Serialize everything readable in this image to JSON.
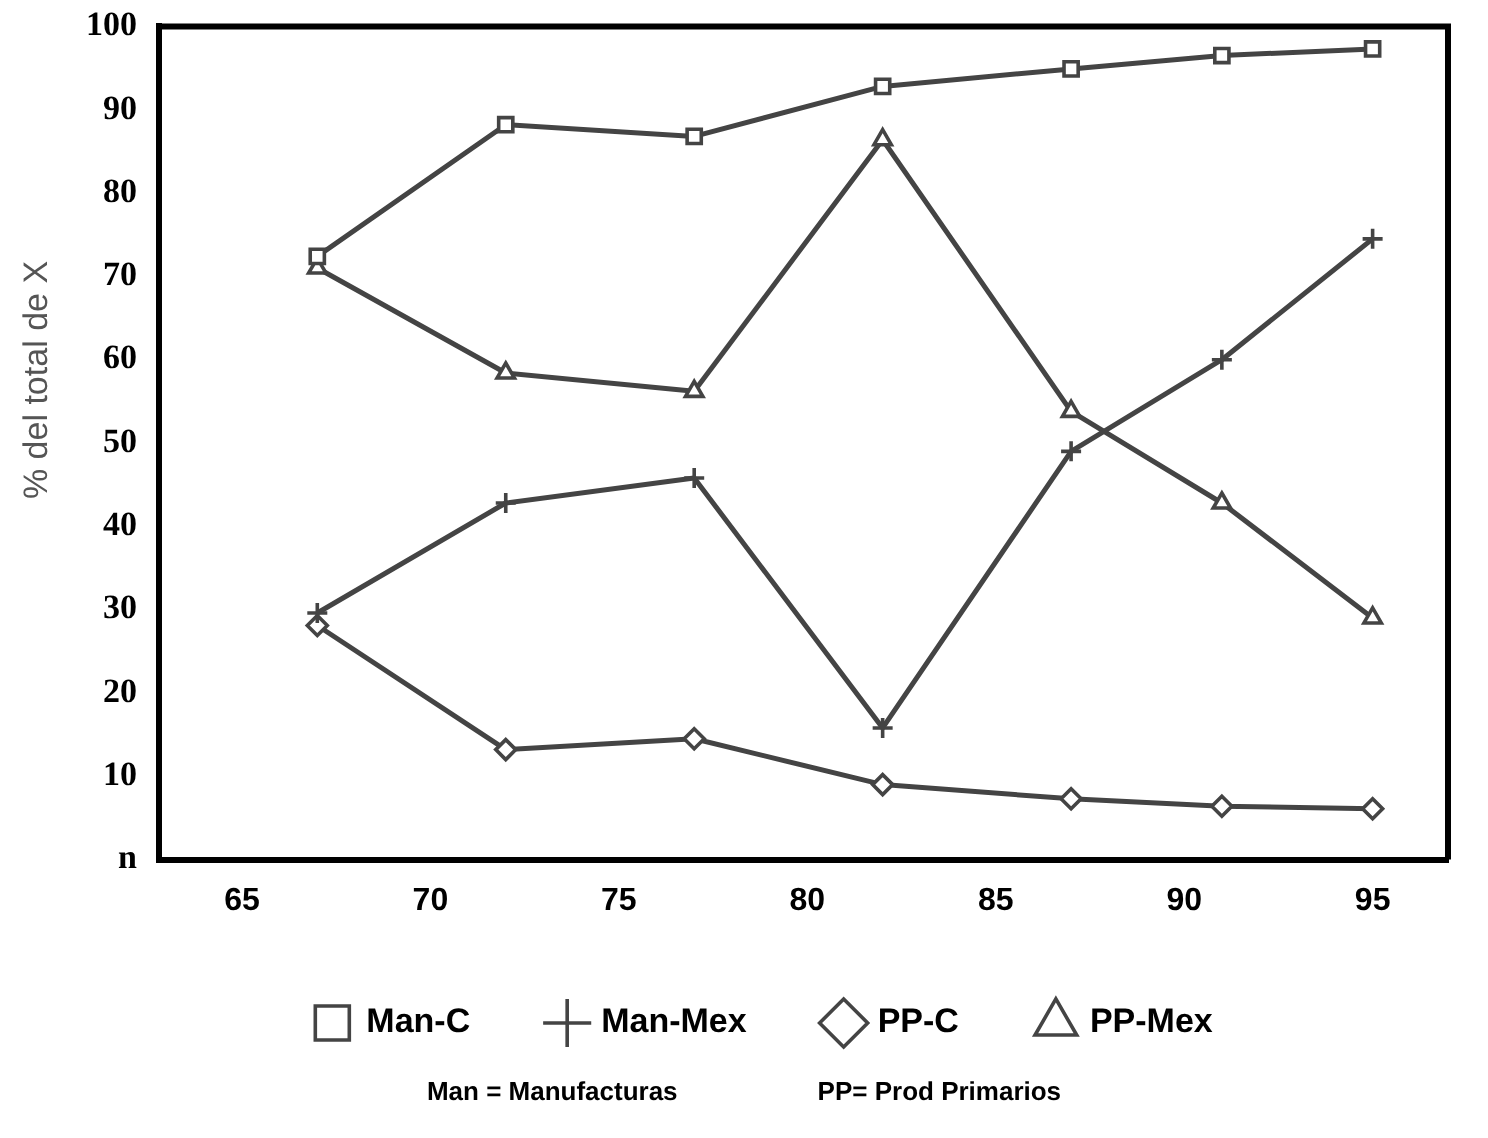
{
  "chart_data": {
    "type": "line",
    "ylabel": "% del total de X",
    "x": [
      67,
      72,
      77,
      82,
      87,
      91,
      95
    ],
    "series": [
      {
        "name": "Man-C",
        "color": "#444444",
        "marker": "square",
        "values": [
          72.4,
          88.2,
          86.8,
          92.8,
          94.9,
          96.5,
          97.3
        ]
      },
      {
        "name": "Man-Mex",
        "color": "#444444",
        "marker": "cross",
        "values": [
          29.6,
          42.8,
          45.8,
          15.8,
          49,
          60,
          74.5
        ]
      },
      {
        "name": "PP-C",
        "color": "#444444",
        "marker": "diamond",
        "values": [
          28.1,
          13.2,
          14.5,
          9,
          7.3,
          6.4,
          6.1
        ]
      },
      {
        "name": "PP-Mex",
        "color": "#444444",
        "marker": "triangle",
        "values": [
          71,
          58.4,
          56.2,
          86.4,
          53.8,
          42.8,
          29
        ]
      }
    ],
    "xlim": [
      62.8,
      97
    ],
    "xticks": [
      65,
      70,
      75,
      80,
      85,
      90,
      95
    ],
    "ylim": [
      0,
      100
    ],
    "yticks": [
      {
        "value": 0,
        "label": "n"
      },
      10,
      20,
      30,
      40,
      50,
      60,
      70,
      80,
      90,
      100
    ],
    "grid": false,
    "legend": "bottom",
    "annotations": [
      "Man = Manufacturas",
      "PP= Prod Primarios"
    ]
  }
}
